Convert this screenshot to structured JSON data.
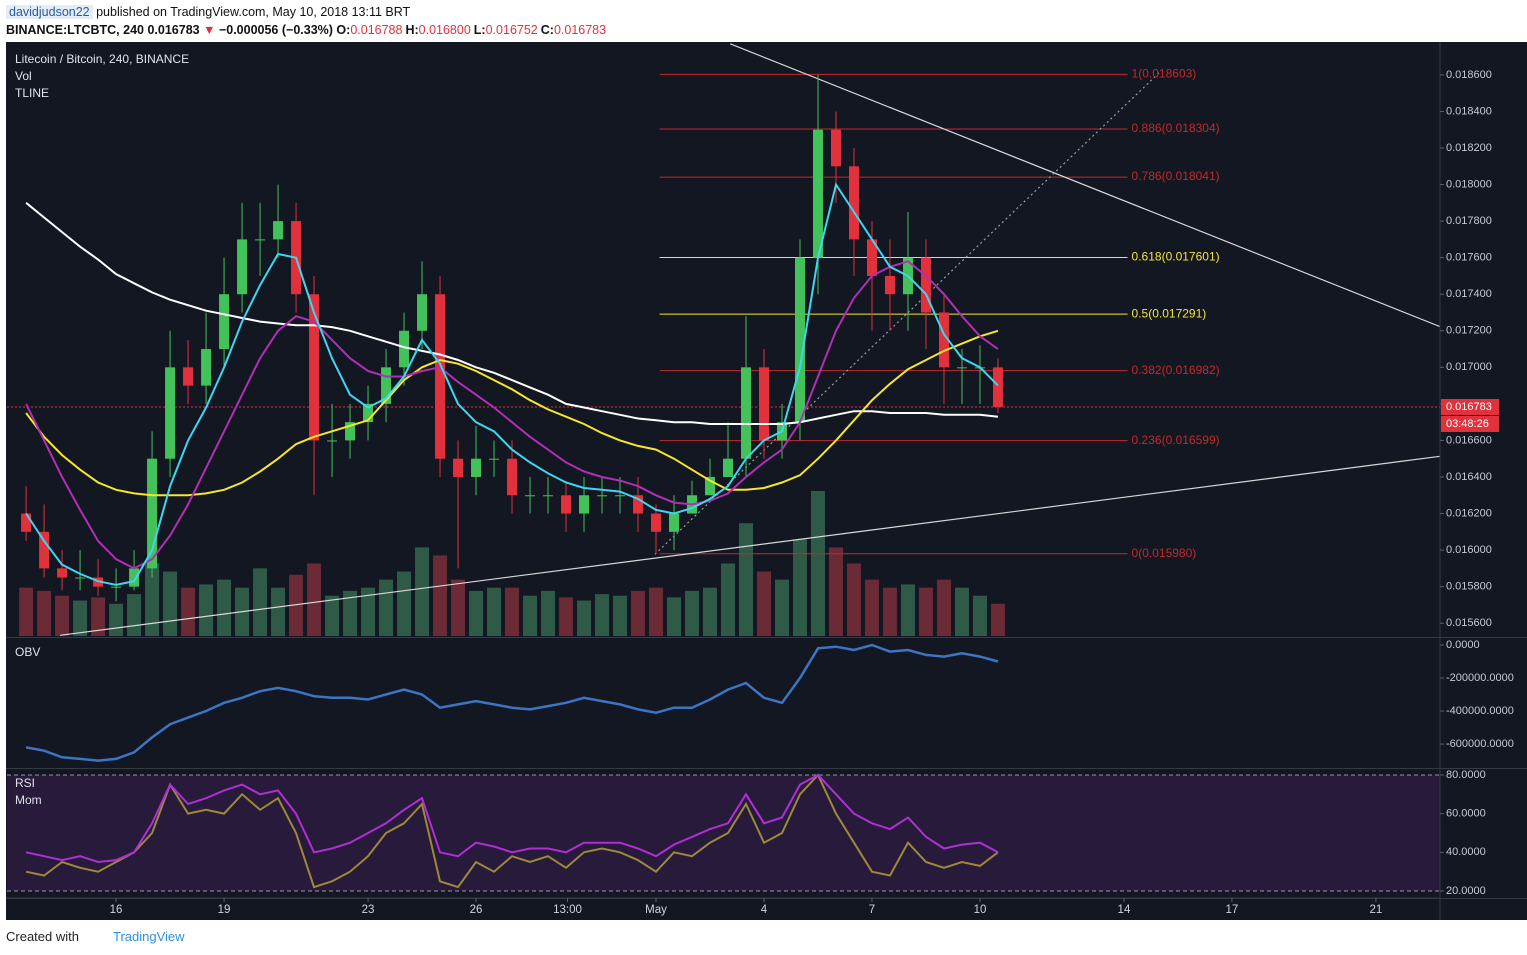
{
  "header": {
    "author": "davidjudson22",
    "published": "published on TradingView.com, May 10, 2018 13:11 BRT",
    "symbol": "BINANCE:LTCBTC, 240",
    "last": "0.016783",
    "arrow": "▼",
    "change": "−0.000056 (−0.33%)",
    "ohlc": [
      {
        "key": "O:",
        "value": "0.016788"
      },
      {
        "key": "H:",
        "value": "0.016800"
      },
      {
        "key": "L:",
        "value": "0.016752"
      },
      {
        "key": "C:",
        "value": "0.016783"
      }
    ]
  },
  "footer": {
    "created": "Created with",
    "brand": "TradingView"
  },
  "chart_data": [
    {
      "type": "candlestick",
      "legend": [
        "Litecoin / Bitcoin, 240, BINANCE",
        "Vol",
        "TLINE"
      ],
      "xlim": [
        -3.03,
        36.78
      ],
      "ylim": [
        0.01553,
        0.01878
      ],
      "x": [
        -2.5,
        -2,
        -1.5,
        -1,
        -0.5,
        0,
        0.5,
        1,
        1.5,
        2,
        2.5,
        3,
        3.5,
        4,
        4.5,
        5,
        5.5,
        6,
        6.5,
        7,
        7.5,
        8,
        8.5,
        9,
        9.5,
        10,
        10.5,
        11,
        11.5,
        12,
        12.5,
        13,
        13.5,
        14,
        14.5,
        15,
        15.5,
        16,
        16.5,
        17,
        17.5,
        18,
        18.5,
        19,
        19.5,
        20,
        20.5,
        21,
        21.5,
        22,
        22.5,
        23,
        23.5,
        24,
        24.5
      ],
      "open": [
        0.0162,
        0.0161,
        0.0159,
        0.01585,
        0.01585,
        0.0158,
        0.0158,
        0.0159,
        0.0165,
        0.017,
        0.0169,
        0.0171,
        0.0174,
        0.0177,
        0.0177,
        0.0178,
        0.0174,
        0.0166,
        0.0166,
        0.0167,
        0.0168,
        0.017,
        0.0172,
        0.0174,
        0.0165,
        0.0164,
        0.0165,
        0.0165,
        0.0163,
        0.0163,
        0.0163,
        0.0162,
        0.0163,
        0.0163,
        0.0163,
        0.0162,
        0.0161,
        0.0162,
        0.0163,
        0.0164,
        0.0165,
        0.017,
        0.0166,
        0.0167,
        0.0176,
        0.0183,
        0.0181,
        0.0177,
        0.0175,
        0.0174,
        0.0176,
        0.0173,
        0.017,
        0.017,
        0.017
      ],
      "high": [
        0.01635,
        0.01625,
        0.016,
        0.016,
        0.01595,
        0.0159,
        0.016,
        0.01665,
        0.0172,
        0.01715,
        0.0173,
        0.0176,
        0.0179,
        0.0179,
        0.018,
        0.0179,
        0.0175,
        0.0168,
        0.0168,
        0.0169,
        0.0171,
        0.0173,
        0.01758,
        0.0175,
        0.0166,
        0.01668,
        0.0166,
        0.0166,
        0.0164,
        0.0164,
        0.01638,
        0.0164,
        0.0164,
        0.0164,
        0.0164,
        0.01625,
        0.0163,
        0.01638,
        0.0165,
        0.0167,
        0.01728,
        0.0171,
        0.0168,
        0.0177,
        0.0186,
        0.0184,
        0.0182,
        0.0178,
        0.0177,
        0.01785,
        0.0177,
        0.0174,
        0.0171,
        0.01712,
        0.01705
      ],
      "low": [
        0.01605,
        0.01585,
        0.01578,
        0.01578,
        0.01575,
        0.01572,
        0.01578,
        0.01585,
        0.0164,
        0.0168,
        0.0168,
        0.017,
        0.0173,
        0.0175,
        0.0176,
        0.0173,
        0.0163,
        0.0164,
        0.0165,
        0.0166,
        0.0167,
        0.0169,
        0.0171,
        0.0164,
        0.0159,
        0.0163,
        0.0164,
        0.0162,
        0.0162,
        0.0162,
        0.0161,
        0.0161,
        0.0162,
        0.0162,
        0.0161,
        0.01598,
        0.016,
        0.0162,
        0.0163,
        0.0164,
        0.0164,
        0.0165,
        0.0165,
        0.0166,
        0.0174,
        0.0179,
        0.0175,
        0.0172,
        0.0172,
        0.0172,
        0.0171,
        0.0168,
        0.0168,
        0.0168,
        0.01675
      ],
      "close": [
        0.0161,
        0.0159,
        0.01585,
        0.01585,
        0.0158,
        0.0158,
        0.0159,
        0.0165,
        0.017,
        0.0169,
        0.0171,
        0.0174,
        0.0177,
        0.0177,
        0.0178,
        0.0174,
        0.0166,
        0.0166,
        0.0167,
        0.0168,
        0.017,
        0.0172,
        0.0174,
        0.0165,
        0.0164,
        0.0165,
        0.0165,
        0.0163,
        0.0163,
        0.0163,
        0.0162,
        0.0163,
        0.0163,
        0.0163,
        0.0162,
        0.0161,
        0.0162,
        0.0163,
        0.0164,
        0.0165,
        0.017,
        0.0166,
        0.0167,
        0.0176,
        0.0183,
        0.0181,
        0.0177,
        0.0175,
        0.0174,
        0.0176,
        0.0173,
        0.017,
        0.017,
        0.017,
        0.016783
      ],
      "volume": [
        30,
        28,
        25,
        22,
        24,
        20,
        26,
        45,
        40,
        30,
        32,
        35,
        30,
        42,
        30,
        38,
        45,
        25,
        28,
        30,
        35,
        40,
        55,
        50,
        35,
        28,
        30,
        30,
        25,
        28,
        24,
        22,
        26,
        25,
        28,
        30,
        24,
        28,
        30,
        45,
        70,
        40,
        35,
        60,
        90,
        55,
        45,
        35,
        30,
        32,
        30,
        35,
        30,
        25,
        20
      ],
      "up_color": "#43c15a",
      "down_color": "#e0313d",
      "vol_up_color": "#2f5a48",
      "vol_down_color": "#6a2a36",
      "lines": [
        {
          "color": "#ffffff",
          "values": [
            0.0179,
            0.01782,
            0.01774,
            0.01766,
            0.01759,
            0.01751,
            0.01746,
            0.01741,
            0.01737,
            0.01734,
            0.01731,
            0.01729,
            0.01727,
            0.01725,
            0.01724,
            0.01723,
            0.01723,
            0.01722,
            0.0172,
            0.01717,
            0.01714,
            0.01711,
            0.01709,
            0.01707,
            0.01704,
            0.017,
            0.01697,
            0.01693,
            0.01689,
            0.01685,
            0.0168,
            0.01678,
            0.01676,
            0.01674,
            0.01672,
            0.01671,
            0.0167,
            0.0167,
            0.01669,
            0.01669,
            0.01669,
            0.01669,
            0.01669,
            0.0167,
            0.01672,
            0.01674,
            0.01676,
            0.01676,
            0.01675,
            0.01675,
            0.01675,
            0.01674,
            0.01674,
            0.01674,
            0.01673
          ]
        },
        {
          "color": "#f5e72a",
          "values": [
            0.01675,
            0.01662,
            0.01652,
            0.01644,
            0.01637,
            0.01633,
            0.01631,
            0.0163,
            0.0163,
            0.0163,
            0.01631,
            0.01633,
            0.01637,
            0.01643,
            0.0165,
            0.01658,
            0.01662,
            0.01665,
            0.01668,
            0.01671,
            0.01682,
            0.01693,
            0.017,
            0.01704,
            0.01702,
            0.01698,
            0.01693,
            0.01688,
            0.01682,
            0.01677,
            0.01673,
            0.01669,
            0.01664,
            0.0166,
            0.01657,
            0.01655,
            0.0165,
            0.01644,
            0.01638,
            0.01633,
            0.01633,
            0.01634,
            0.01637,
            0.01641,
            0.0165,
            0.0166,
            0.01671,
            0.01682,
            0.01691,
            0.01699,
            0.01704,
            0.01709,
            0.01713,
            0.01717,
            0.0172
          ]
        },
        {
          "color": "#b02fb5",
          "values": [
            0.0168,
            0.0166,
            0.0164,
            0.01622,
            0.01605,
            0.01595,
            0.0159,
            0.01595,
            0.01608,
            0.01625,
            0.01645,
            0.01665,
            0.01685,
            0.01705,
            0.0172,
            0.01728,
            0.01725,
            0.01715,
            0.01705,
            0.01698,
            0.01695,
            0.01695,
            0.01698,
            0.017,
            0.01692,
            0.01685,
            0.01678,
            0.0167,
            0.01662,
            0.01655,
            0.01648,
            0.01643,
            0.0164,
            0.01638,
            0.01635,
            0.0163,
            0.01626,
            0.01625,
            0.01627,
            0.01631,
            0.0164,
            0.01648,
            0.01655,
            0.0167,
            0.01695,
            0.0172,
            0.01738,
            0.0175,
            0.01755,
            0.01758,
            0.0175,
            0.0174,
            0.01728,
            0.01717,
            0.0171
          ]
        },
        {
          "color": "#3fd6f0",
          "values": [
            0.0162,
            0.01605,
            0.01592,
            0.01587,
            0.01583,
            0.01581,
            0.01583,
            0.016,
            0.01635,
            0.0166,
            0.01678,
            0.017,
            0.01725,
            0.01745,
            0.01762,
            0.0176,
            0.0173,
            0.01705,
            0.01685,
            0.01678,
            0.01683,
            0.01695,
            0.01715,
            0.01702,
            0.0168,
            0.0167,
            0.01665,
            0.01655,
            0.01648,
            0.01642,
            0.01637,
            0.01634,
            0.01633,
            0.01632,
            0.01628,
            0.01622,
            0.0162,
            0.01623,
            0.01628,
            0.01635,
            0.0165,
            0.0166,
            0.01665,
            0.017,
            0.0176,
            0.018,
            0.01785,
            0.0177,
            0.01755,
            0.0175,
            0.0174,
            0.01718,
            0.01705,
            0.017,
            0.0169
          ]
        }
      ],
      "trendlines": [
        {
          "x": [
            17.06,
            36.78
          ],
          "y": [
            0.01877,
            0.017223
          ],
          "color": "#d8d8d8"
        },
        {
          "x": [
            -1.556,
            36.78
          ],
          "y": [
            0.015534,
            0.016513
          ],
          "color": "#d8d8d8"
        },
        {
          "x": [
            14.97,
            29.0
          ],
          "y": [
            0.015977,
            0.018616
          ],
          "color": "#9a9ea8",
          "dashed": true
        }
      ],
      "fib_x": [
        15.1,
        28.1
      ],
      "fib_levels": [
        {
          "label": "1(0.018603)",
          "value": 0.018603,
          "color": "#c22a2a"
        },
        {
          "label": "0.886(0.018304)",
          "value": 0.018304,
          "color": "#c22a2a"
        },
        {
          "label": "0.786(0.018041)",
          "value": 0.018041,
          "color": "#c22a2a"
        },
        {
          "label": "0.618(0.017601)",
          "value": 0.017601,
          "color": "#f0e73a"
        },
        {
          "label": "0.5(0.017291)",
          "value": 0.017291,
          "color": "#f0e73a"
        },
        {
          "label": "0.382(0.016982)",
          "value": 0.016982,
          "color": "#c22a2a"
        },
        {
          "label": "0.236(0.016599)",
          "value": 0.016599,
          "color": "#c22a2a"
        },
        {
          "label": "0(0.015980)",
          "value": 0.01598,
          "color": "#c22a2a"
        }
      ],
      "last": {
        "value": 0.016783,
        "label": "0.016783",
        "countdown": "03:48:26",
        "color": "#e0313d"
      },
      "yticks": [
        {
          "value": 0.0156,
          "label": "0.015600"
        },
        {
          "value": 0.0158,
          "label": "0.015800"
        },
        {
          "value": 0.016,
          "label": "0.016000"
        },
        {
          "value": 0.0162,
          "label": "0.016200"
        },
        {
          "value": 0.0164,
          "label": "0.016400"
        },
        {
          "value": 0.0166,
          "label": "0.016600"
        },
        {
          "value": 0.0168,
          "label": "0.016800"
        },
        {
          "value": 0.017,
          "label": "0.017000"
        },
        {
          "value": 0.0172,
          "label": "0.017200"
        },
        {
          "value": 0.0174,
          "label": "0.017400"
        },
        {
          "value": 0.0176,
          "label": "0.017600"
        },
        {
          "value": 0.0178,
          "label": "0.017800"
        },
        {
          "value": 0.018,
          "label": "0.018000"
        },
        {
          "value": 0.0182,
          "label": "0.018200"
        },
        {
          "value": 0.0184,
          "label": "0.018400"
        },
        {
          "value": 0.0186,
          "label": "0.018600"
        }
      ]
    },
    {
      "type": "line",
      "title": "OBV",
      "ylim": [
        -739000,
        30300
      ],
      "series": [
        {
          "color": "#3d74c4",
          "values": [
            -620000,
            -640000,
            -680000,
            -690000,
            -700000,
            -690000,
            -650000,
            -560000,
            -480000,
            -440000,
            -400000,
            -350000,
            -320000,
            -280000,
            -260000,
            -280000,
            -310000,
            -320000,
            -320000,
            -330000,
            -300000,
            -270000,
            -300000,
            -380000,
            -360000,
            -340000,
            -360000,
            -380000,
            -390000,
            -370000,
            -350000,
            -320000,
            -340000,
            -360000,
            -390000,
            -410000,
            -380000,
            -380000,
            -330000,
            -270000,
            -230000,
            -320000,
            -350000,
            -200000,
            -20000,
            -10000,
            -30000,
            0,
            -40000,
            -30000,
            -60000,
            -70000,
            -50000,
            -70000,
            -100000
          ]
        }
      ],
      "yticks": [
        {
          "value": 0,
          "label": "0.0000"
        },
        {
          "value": -200000,
          "label": "-200000.0000"
        },
        {
          "value": -400000,
          "label": "-400000.0000"
        },
        {
          "value": -600000,
          "label": "-600000.0000"
        }
      ]
    },
    {
      "type": "line",
      "legend": [
        "RSI",
        "Mom"
      ],
      "ylim": [
        16.9,
        83.6
      ],
      "band": [
        20,
        80
      ],
      "band_color": "#271a3a",
      "series": [
        {
          "color": "#b02fd4",
          "values": [
            40,
            38,
            36,
            38,
            35,
            36,
            40,
            55,
            75,
            65,
            68,
            72,
            75,
            70,
            72,
            60,
            40,
            42,
            45,
            50,
            55,
            62,
            68,
            40,
            38,
            45,
            43,
            40,
            42,
            42,
            40,
            45,
            45,
            45,
            42,
            38,
            44,
            48,
            52,
            55,
            70,
            55,
            58,
            75,
            80,
            70,
            60,
            55,
            52,
            58,
            48,
            42,
            44,
            45,
            40
          ]
        },
        {
          "color": "#9c8a3a",
          "values": [
            30,
            28,
            35,
            32,
            30,
            35,
            40,
            50,
            75,
            60,
            62,
            60,
            70,
            62,
            68,
            50,
            22,
            25,
            30,
            38,
            50,
            55,
            65,
            25,
            22,
            35,
            30,
            38,
            35,
            38,
            32,
            40,
            42,
            40,
            36,
            30,
            40,
            38,
            45,
            50,
            65,
            45,
            50,
            70,
            80,
            60,
            45,
            30,
            28,
            45,
            35,
            32,
            35,
            33,
            40
          ]
        }
      ],
      "yticks": [
        {
          "value": 80,
          "label": "80.0000"
        },
        {
          "value": 60,
          "label": "60.0000"
        },
        {
          "value": 40,
          "label": "40.0000"
        },
        {
          "value": 20,
          "label": "20.0000"
        }
      ],
      "xticks": [
        {
          "value": 0,
          "label": "16"
        },
        {
          "value": 3,
          "label": "19"
        },
        {
          "value": 7,
          "label": "23"
        },
        {
          "value": 10,
          "label": "26"
        },
        {
          "value": 12.5417,
          "label": "13:00"
        },
        {
          "value": 15,
          "label": "May"
        },
        {
          "value": 18,
          "label": "4"
        },
        {
          "value": 21,
          "label": "7"
        },
        {
          "value": 24,
          "label": "10"
        },
        {
          "value": 28,
          "label": "14"
        },
        {
          "value": 31,
          "label": "17"
        },
        {
          "value": 35,
          "label": "21"
        }
      ]
    }
  ]
}
